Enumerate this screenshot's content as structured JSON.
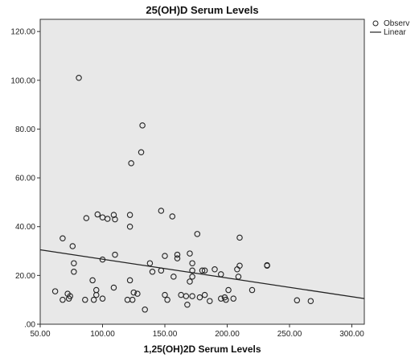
{
  "chart_data": {
    "type": "scatter",
    "title": "25(OH)D Serum Levels",
    "xlabel": "1,25(OH)2D Serum Levels",
    "ylabel": "",
    "xlim": [
      50,
      310
    ],
    "ylim": [
      0,
      125
    ],
    "xticks": [
      "50.00",
      "100.00",
      "150.00",
      "200.00",
      "250.00",
      "300.00"
    ],
    "xtick_values": [
      50,
      100,
      150,
      200,
      250,
      300
    ],
    "yticks": [
      ".00",
      "20.00",
      "40.00",
      "60.00",
      "80.00",
      "100.00",
      "120.00"
    ],
    "ytick_values": [
      0,
      20,
      40,
      60,
      80,
      100,
      120
    ],
    "grid": false,
    "background": "#e8e8e8",
    "legend": {
      "placement": "top-right",
      "entries": [
        {
          "label": "Observ",
          "marker": "circle"
        },
        {
          "label": "Linear",
          "marker": "line"
        }
      ]
    },
    "series": [
      {
        "name": "Observ",
        "type": "scatter",
        "points": [
          [
            81,
            101
          ],
          [
            132,
            81.5
          ],
          [
            131,
            70.5
          ],
          [
            123,
            66
          ],
          [
            147,
            46.5
          ],
          [
            96,
            45
          ],
          [
            87,
            43.5
          ],
          [
            100,
            43.8
          ],
          [
            104,
            43.2
          ],
          [
            109,
            44.8
          ],
          [
            110,
            43
          ],
          [
            122,
            44.8
          ],
          [
            156,
            44.2
          ],
          [
            122,
            40
          ],
          [
            176,
            37
          ],
          [
            210,
            35.5
          ],
          [
            68,
            35.2
          ],
          [
            76,
            32
          ],
          [
            150,
            28
          ],
          [
            160,
            28.5
          ],
          [
            170,
            29
          ],
          [
            110,
            28.5
          ],
          [
            100,
            26.5
          ],
          [
            77,
            25
          ],
          [
            138,
            25
          ],
          [
            160,
            27
          ],
          [
            172,
            25
          ],
          [
            190,
            22.5
          ],
          [
            210,
            24
          ],
          [
            232,
            24.2
          ],
          [
            208,
            22.5
          ],
          [
            180,
            22
          ],
          [
            182,
            22
          ],
          [
            172,
            22
          ],
          [
            140,
            21.5
          ],
          [
            147,
            22
          ],
          [
            77,
            21.5
          ],
          [
            157,
            19.5
          ],
          [
            172,
            19.5
          ],
          [
            195,
            20.5
          ],
          [
            209,
            19.5
          ],
          [
            232,
            24
          ],
          [
            92,
            18
          ],
          [
            122,
            18
          ],
          [
            170,
            17.5
          ],
          [
            109,
            15
          ],
          [
            201,
            14
          ],
          [
            220,
            14
          ],
          [
            95,
            14
          ],
          [
            125,
            13
          ],
          [
            62,
            13.5
          ],
          [
            72,
            12.5
          ],
          [
            74,
            11.5
          ],
          [
            95,
            12
          ],
          [
            128,
            12.5
          ],
          [
            150,
            12
          ],
          [
            163,
            12
          ],
          [
            167,
            11.5
          ],
          [
            172,
            11.5
          ],
          [
            178,
            11
          ],
          [
            182,
            12
          ],
          [
            195,
            10.5
          ],
          [
            198,
            11
          ],
          [
            205,
            10.5
          ],
          [
            68,
            10
          ],
          [
            73,
            10.5
          ],
          [
            86,
            10
          ],
          [
            93,
            10
          ],
          [
            100,
            10.5
          ],
          [
            120,
            10
          ],
          [
            124,
            10
          ],
          [
            152,
            10
          ],
          [
            186,
            9.5
          ],
          [
            199,
            10
          ],
          [
            256,
            9.8
          ],
          [
            267,
            9.5
          ],
          [
            168,
            8
          ],
          [
            134,
            6
          ]
        ]
      },
      {
        "name": "Linear",
        "type": "line",
        "points": [
          [
            50,
            30.5
          ],
          [
            310,
            10.5
          ]
        ]
      }
    ]
  }
}
